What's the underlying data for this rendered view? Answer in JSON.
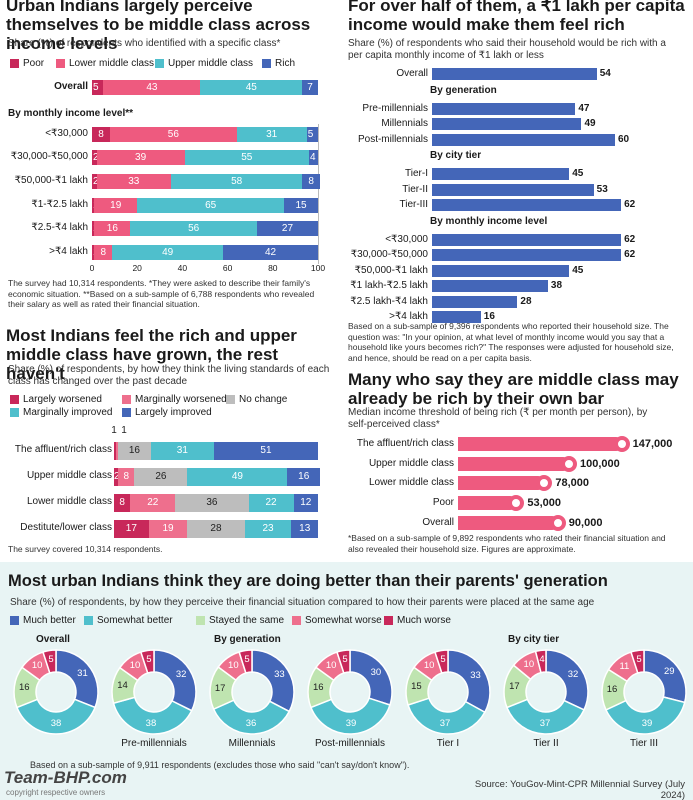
{
  "colors": {
    "poor": "#c8285a",
    "lmc": "#ee5a7f",
    "umc": "#4fbfcc",
    "rich": "#4466b8",
    "lw": "#c8285a",
    "mw": "#ee6f8d",
    "nc": "#bdbdbd",
    "mi": "#4fbfcc",
    "li": "#4466b8",
    "mb": "#4466b8",
    "sb": "#4fbfcc",
    "ss": "#bfe4b0",
    "sw": "#ee6f8d",
    "mwo": "#c8285a"
  },
  "p1": {
    "title": "Urban Indians largely perceive themselves to be middle class across income levels",
    "subtitle": "Share (%) of respondents who identified with a specific class*",
    "legend": [
      "Poor",
      "Lower middle class",
      "Upper middle class",
      "Rich"
    ],
    "group_label": "By monthly income level**",
    "note": "The survey had 10,314 respondents. *They were asked to describe their family's economic situation. **Based on a sub-sample of 6,788 respondents who revealed their salary as well as rated their financial situation.",
    "axis_ticks": [
      "0",
      "20",
      "40",
      "60",
      "80",
      "100"
    ]
  },
  "p2": {
    "title": "For over half of them, a ₹1 lakh per capita income would make them feel rich",
    "subtitle": "Share (%) of respondents who said their household would be rich with a per capita monthly income of ₹1 lakh or less",
    "note": "Based on a sub-sample of 9,396 respondents who reported their household size. The question was: \"In your opinion, at what level of monthly income would you say that a household like yours becomes rich?\" The responses were adjusted for household size, and hence, should be read on a per capita basis."
  },
  "p3": {
    "title": "Most Indians feel the rich and upper middle class have grown, the rest haven't",
    "subtitle": "Share (%) of respondents, by how they think the living standards of each class has changed over the past decade",
    "legend": [
      "Largely worsened",
      "Marginally worsened",
      "No change",
      "Marginally improved",
      "Largely improved"
    ],
    "note": "The survey covered 10,314 respondents."
  },
  "p4": {
    "title": "Many who say they are middle class may already be rich by their own bar",
    "subtitle": "Median income threshold of being rich (₹ per month per person), by self-perceived class*",
    "note": "*Based on a sub-sample of 9,892 respondents who rated their financial situation and also revealed their household size. Figures are approximate."
  },
  "p5": {
    "title": "Most urban Indians think they are doing better than their parents' generation",
    "subtitle": "Share (%) of respondents, by how they perceive their financial situation compared to how their parents were placed at the same age",
    "legend": [
      "Much better",
      "Somewhat better",
      "Stayed the same",
      "Somewhat worse",
      "Much worse"
    ],
    "group_overall": "Overall",
    "group_gen": "By generation",
    "group_tier": "By city tier",
    "note": "Based on a sub-sample of 9,911 respondents (excludes those who said \"can't say/don't know\").",
    "source": "Source: YouGov-Mint-CPR Millennial Survey (July 2024)"
  },
  "watermark": {
    "brand": "Team-BHP.com",
    "tag": "copyright respective owners"
  },
  "chart_data": [
    {
      "type": "bar",
      "stacked": true,
      "orientation": "horizontal",
      "title": "Urban Indians largely perceive themselves to be middle class across income levels",
      "series_names": [
        "Poor",
        "Lower middle class",
        "Upper middle class",
        "Rich"
      ],
      "xlim": [
        0,
        100
      ],
      "rows": [
        {
          "label": "Overall",
          "values": [
            5,
            43,
            45,
            7
          ]
        },
        {
          "label": "<₹30,000",
          "values": [
            8,
            56,
            31,
            5
          ]
        },
        {
          "label": "₹30,000-₹50,000",
          "values": [
            2,
            39,
            55,
            4
          ]
        },
        {
          "label": "₹50,000-₹1 lakh",
          "values": [
            2,
            33,
            58,
            8
          ]
        },
        {
          "label": "₹1-₹2.5 lakh",
          "values": [
            1,
            19,
            65,
            15
          ]
        },
        {
          "label": "₹2.5-₹4 lakh",
          "values": [
            1,
            16,
            56,
            27
          ]
        },
        {
          "label": ">₹4 lakh",
          "values": [
            1,
            8,
            49,
            42
          ]
        }
      ]
    },
    {
      "type": "bar",
      "orientation": "horizontal",
      "title": "For over half of them, a ₹1 lakh per capita income would make them feel rich",
      "xlim": [
        0,
        100
      ],
      "groups": [
        {
          "name": "",
          "rows": [
            {
              "label": "Overall",
              "value": 54
            }
          ]
        },
        {
          "name": "By generation",
          "rows": [
            {
              "label": "Pre-millennials",
              "value": 47
            },
            {
              "label": "Millennials",
              "value": 49
            },
            {
              "label": "Post-millennials",
              "value": 60
            }
          ]
        },
        {
          "name": "By city tier",
          "rows": [
            {
              "label": "Tier-I",
              "value": 45
            },
            {
              "label": "Tier-II",
              "value": 53
            },
            {
              "label": "Tier-III",
              "value": 62
            }
          ]
        },
        {
          "name": "By monthly income level",
          "rows": [
            {
              "label": "<₹30,000",
              "value": 62
            },
            {
              "label": "₹30,000-₹50,000",
              "value": 62
            },
            {
              "label": "₹50,000-₹1 lakh",
              "value": 45
            },
            {
              "label": "₹1 lakh-₹2.5 lakh",
              "value": 38
            },
            {
              "label": "₹2.5 lakh-₹4 lakh",
              "value": 28
            },
            {
              "label": ">₹4 lakh",
              "value": 16
            }
          ]
        }
      ]
    },
    {
      "type": "bar",
      "stacked": true,
      "orientation": "horizontal",
      "title": "Most Indians feel the rich and upper middle class have grown, the rest haven't",
      "series_names": [
        "Largely worsened",
        "Marginally worsened",
        "No change",
        "Marginally improved",
        "Largely improved"
      ],
      "rows": [
        {
          "label": "The affluent/rich class",
          "values": [
            1,
            1,
            16,
            31,
            51
          ]
        },
        {
          "label": "Upper middle class",
          "values": [
            2,
            8,
            26,
            49,
            16
          ]
        },
        {
          "label": "Lower middle class",
          "values": [
            8,
            22,
            36,
            22,
            12
          ]
        },
        {
          "label": "Destitute/lower class",
          "values": [
            17,
            19,
            28,
            23,
            13
          ]
        }
      ]
    },
    {
      "type": "bar",
      "orientation": "horizontal",
      "title": "Many who say they are middle class may already be rich by their own bar",
      "rows": [
        {
          "label": "The affluent/rich class",
          "value": 147000,
          "display": "147,000"
        },
        {
          "label": "Upper middle class",
          "value": 100000,
          "display": "100,000"
        },
        {
          "label": "Lower middle class",
          "value": 78000,
          "display": "78,000"
        },
        {
          "label": "Poor",
          "value": 53000,
          "display": "53,000"
        },
        {
          "label": "Overall",
          "value": 90000,
          "display": "90,000"
        }
      ]
    },
    {
      "type": "pie",
      "donut": true,
      "title": "Most urban Indians think they are doing better than their parents' generation",
      "series_names": [
        "Much better",
        "Somewhat better",
        "Stayed the same",
        "Somewhat worse",
        "Much worse"
      ],
      "charts": [
        {
          "label": "",
          "values": [
            31,
            38,
            16,
            10,
            5
          ]
        },
        {
          "label": "Pre-millennials",
          "values": [
            32,
            38,
            14,
            10,
            5
          ]
        },
        {
          "label": "Millennials",
          "values": [
            33,
            36,
            17,
            10,
            5
          ]
        },
        {
          "label": "Post-millennials",
          "values": [
            30,
            39,
            16,
            10,
            5
          ]
        },
        {
          "label": "Tier I",
          "values": [
            33,
            37,
            15,
            10,
            5
          ]
        },
        {
          "label": "Tier II",
          "values": [
            32,
            37,
            17,
            10,
            4
          ]
        },
        {
          "label": "Tier III",
          "values": [
            29,
            39,
            16,
            11,
            5
          ]
        }
      ]
    }
  ]
}
